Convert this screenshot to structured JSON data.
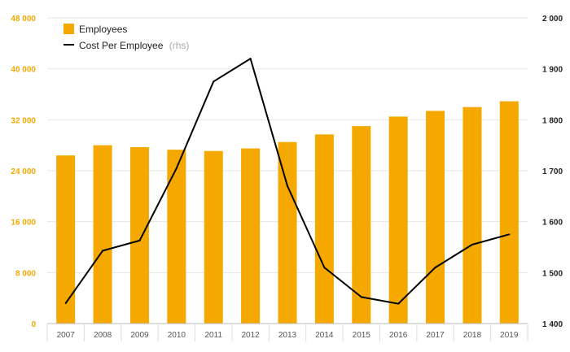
{
  "chart_data": {
    "type": "bar+line",
    "categories": [
      "2007",
      "2008",
      "2009",
      "2010",
      "2011",
      "2012",
      "2013",
      "2014",
      "2015",
      "2016",
      "2017",
      "2018",
      "2019"
    ],
    "series": [
      {
        "name": "Employees",
        "type": "bar",
        "axis": "left",
        "color": "#f5a800",
        "values": [
          26400,
          28000,
          27700,
          27300,
          27100,
          27500,
          28500,
          29700,
          31000,
          32500,
          33400,
          34000,
          34900
        ]
      },
      {
        "name": "Cost Per Employee",
        "name_suffix": "(rhs)",
        "type": "line",
        "axis": "right",
        "color": "#000000",
        "values": [
          1440,
          1543,
          1563,
          1705,
          1875,
          1920,
          1670,
          1510,
          1452,
          1439,
          1510,
          1555,
          1575
        ]
      }
    ],
    "y_left": {
      "min": 0,
      "max": 48000,
      "ticks": [
        0,
        8000,
        16000,
        24000,
        32000,
        40000,
        48000
      ],
      "tick_labels": [
        "0",
        "8 000",
        "16 000",
        "24 000",
        "32 000",
        "40 000",
        "48 000"
      ],
      "color": "#f5a800"
    },
    "y_right": {
      "min": 1400,
      "max": 2000,
      "ticks": [
        1400,
        1500,
        1600,
        1700,
        1800,
        1900,
        2000
      ],
      "tick_labels": [
        "1 400",
        "1 500",
        "1 600",
        "1 700",
        "1 800",
        "1 900",
        "2 000"
      ],
      "color": "#222222"
    },
    "grid": true,
    "legend_position": "top-left"
  }
}
